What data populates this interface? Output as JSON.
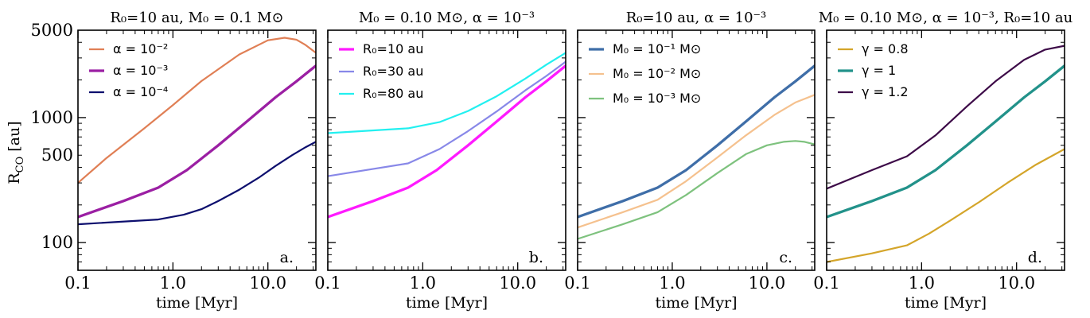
{
  "figure": {
    "ylabel": "R_CO [au]",
    "ylabel_main": "R",
    "ylabel_sub": "CO",
    "ylabel_unit": " [au]"
  },
  "chart_data": [
    {
      "type": "line",
      "panel_label": "a.",
      "title": "R₀=10 au, M₀ = 0.1 M⊙",
      "xlabel": "time [Myr]",
      "ylabel": "R_CO [au]",
      "xscale": "log",
      "yscale": "log",
      "xlim": [
        0.1,
        32
      ],
      "ylim": [
        60,
        5000
      ],
      "xticks": [
        0.1,
        1.0,
        10.0
      ],
      "xtick_labels": [
        "0.1",
        "1.0",
        "10.0"
      ],
      "yticks": [
        100,
        500,
        1000,
        5000
      ],
      "ytick_labels": [
        "100",
        "500",
        "1000",
        "5000"
      ],
      "legend_position": "top-left",
      "series": [
        {
          "name": "α = 10⁻²",
          "color": "#e07f55",
          "width": 2.2,
          "x": [
            0.1,
            0.2,
            0.5,
            1,
            2,
            5,
            10,
            15,
            20,
            25,
            32
          ],
          "y": [
            300,
            475,
            820,
            1260,
            1960,
            3200,
            4150,
            4350,
            4200,
            3800,
            3300
          ]
        },
        {
          "name": "α = 10⁻³",
          "color": "#9b1fa3",
          "width": 3.3,
          "x": [
            0.1,
            0.3,
            0.7,
            1.4,
            3,
            6,
            12,
            20,
            32
          ],
          "y": [
            160,
            215,
            275,
            380,
            600,
            930,
            1450,
            1950,
            2600
          ]
        },
        {
          "name": "α = 10⁻⁴",
          "color": "#0d0f6e",
          "width": 2.2,
          "x": [
            0.1,
            0.7,
            1.3,
            2,
            3,
            5,
            8,
            12,
            18,
            25,
            32
          ],
          "y": [
            140,
            153,
            167,
            185,
            215,
            265,
            330,
            410,
            500,
            580,
            640
          ]
        }
      ]
    },
    {
      "type": "line",
      "panel_label": "b.",
      "title": "M₀ = 0.10 M⊙, α = 10⁻³",
      "xlabel": "time [Myr]",
      "xscale": "log",
      "yscale": "log",
      "xlim": [
        0.1,
        32
      ],
      "ylim": [
        60,
        5000
      ],
      "xticks": [
        0.1,
        1.0,
        10.0
      ],
      "xtick_labels": [
        "0.1",
        "1.0",
        "10.0"
      ],
      "legend_position": "top-left",
      "series": [
        {
          "name": "R₀=10 au",
          "color": "#ff1aff",
          "width": 3.3,
          "x": [
            0.1,
            0.3,
            0.7,
            1.4,
            3,
            6,
            12,
            20,
            32
          ],
          "y": [
            160,
            215,
            275,
            380,
            600,
            930,
            1450,
            1950,
            2600
          ]
        },
        {
          "name": "R₀=30 au",
          "color": "#8888e8",
          "width": 2.2,
          "x": [
            0.1,
            0.7,
            1.5,
            3,
            6,
            12,
            20,
            32
          ],
          "y": [
            340,
            430,
            560,
            780,
            1120,
            1650,
            2150,
            2800
          ]
        },
        {
          "name": "R₀=80 au",
          "color": "#22f0f0",
          "width": 2.2,
          "x": [
            0.1,
            0.7,
            1.5,
            3,
            6,
            12,
            20,
            32
          ],
          "y": [
            750,
            820,
            920,
            1130,
            1480,
            2050,
            2650,
            3300
          ]
        }
      ]
    },
    {
      "type": "line",
      "panel_label": "c.",
      "title": "R₀=10 au, α = 10⁻³",
      "xlabel": "time [Myr]",
      "xscale": "log",
      "yscale": "log",
      "xlim": [
        0.1,
        32
      ],
      "ylim": [
        60,
        5000
      ],
      "xticks": [
        0.1,
        1.0,
        10.0
      ],
      "xtick_labels": [
        "0.1",
        "1.0",
        "10.0"
      ],
      "legend_position": "top-left",
      "series": [
        {
          "name": "M₀ = 10⁻¹ M⊙",
          "color": "#3f6ea8",
          "width": 3.3,
          "x": [
            0.1,
            0.3,
            0.7,
            1.4,
            3,
            6,
            12,
            20,
            32
          ],
          "y": [
            160,
            215,
            275,
            380,
            600,
            930,
            1450,
            1950,
            2600
          ]
        },
        {
          "name": "M₀ = 10⁻² M⊙",
          "color": "#f5c18e",
          "width": 2.2,
          "x": [
            0.1,
            0.3,
            0.7,
            1.4,
            3,
            6,
            12,
            20,
            32
          ],
          "y": [
            132,
            175,
            220,
            310,
            480,
            720,
            1050,
            1320,
            1520
          ]
        },
        {
          "name": "M₀ = 10⁻³ M⊙",
          "color": "#7ec27e",
          "width": 2.2,
          "x": [
            0.1,
            0.3,
            0.7,
            1.4,
            3,
            6,
            10,
            15,
            20,
            25,
            32
          ],
          "y": [
            107,
            140,
            175,
            240,
            360,
            510,
            600,
            640,
            650,
            640,
            610
          ]
        }
      ]
    },
    {
      "type": "line",
      "panel_label": "d.",
      "title": "M₀ = 0.10 M⊙, α = 10⁻³, R₀=10 au",
      "xlabel": "time [Myr]",
      "xscale": "log",
      "yscale": "log",
      "xlim": [
        0.1,
        32
      ],
      "ylim": [
        60,
        5000
      ],
      "xticks": [
        0.1,
        1.0,
        10.0
      ],
      "xtick_labels": [
        "0.1",
        "1.0",
        "10.0"
      ],
      "legend_position": "top-left",
      "series": [
        {
          "name": "γ = 0.8",
          "color": "#d4a52a",
          "width": 2.2,
          "x": [
            0.1,
            0.3,
            0.7,
            1.2,
            2,
            4,
            8,
            16,
            32
          ],
          "y": [
            70,
            82,
            95,
            118,
            150,
            210,
            300,
            420,
            560
          ]
        },
        {
          "name": "γ = 1",
          "color": "#22928a",
          "width": 3.3,
          "x": [
            0.1,
            0.3,
            0.7,
            1.4,
            3,
            6,
            12,
            20,
            32
          ],
          "y": [
            160,
            215,
            275,
            380,
            600,
            930,
            1450,
            1950,
            2600
          ]
        },
        {
          "name": "γ = 1.2",
          "color": "#3d0b48",
          "width": 2.2,
          "x": [
            0.1,
            0.3,
            0.7,
            1.4,
            3,
            6,
            12,
            20,
            32
          ],
          "y": [
            270,
            380,
            490,
            720,
            1230,
            1950,
            2900,
            3500,
            3750
          ]
        }
      ]
    }
  ]
}
